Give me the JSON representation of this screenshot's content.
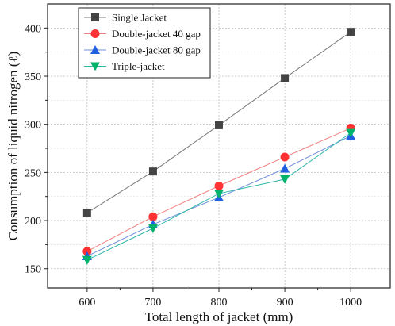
{
  "chart_data": {
    "type": "line",
    "xlabel": "Total length of jacket (mm)",
    "ylabel": "Consumption of liquid nitrogen (ℓ)",
    "x": [
      600,
      700,
      800,
      900,
      1000
    ],
    "xticks": [
      600,
      700,
      800,
      900,
      1000
    ],
    "yticks": [
      150,
      200,
      250,
      300,
      350,
      400
    ],
    "xlim": [
      540,
      1060
    ],
    "ylim": [
      130,
      425
    ],
    "grid": true,
    "legend_position": "top-left",
    "series": [
      {
        "name": "Single Jacket",
        "values": [
          208,
          251,
          299,
          348,
          396
        ],
        "color": "#777777",
        "marker": "square",
        "marker_color": "#444444"
      },
      {
        "name": "Double-jacket 40 gap",
        "values": [
          168,
          204,
          236,
          266,
          296
        ],
        "color": "#f08080",
        "marker": "circle",
        "marker_color": "#ff3333"
      },
      {
        "name": "Double-jacket 80 gap",
        "values": [
          163,
          196,
          224,
          254,
          288
        ],
        "color": "#6f8fd8",
        "marker": "triangle-up",
        "marker_color": "#1f5fe0"
      },
      {
        "name": "Triple-jacket",
        "values": [
          159,
          192,
          228,
          243,
          291
        ],
        "color": "#2fb6a8",
        "marker": "triangle-down",
        "marker_color": "#00b36b"
      }
    ]
  }
}
